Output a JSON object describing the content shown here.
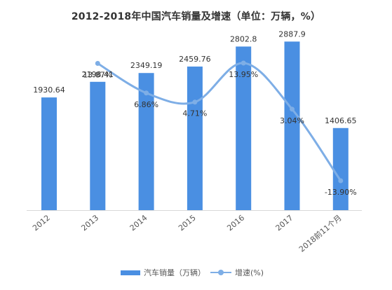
{
  "chart_data": {
    "type": "bar",
    "title": "2012-2018年中国汽车销量及增速（单位：万辆，%）",
    "categories": [
      "2012",
      "2013",
      "2014",
      "2015",
      "2016",
      "2017",
      "2018前11个月"
    ],
    "series": [
      {
        "name": "汽车销量（万辆）",
        "type": "bar",
        "values": [
          1930.64,
          2198.41,
          2349.19,
          2459.76,
          2802.8,
          2887.9,
          1406.65
        ],
        "labels": [
          "1930.64",
          "2198.41",
          "2349.19",
          "2459.76",
          "2802.8",
          "2887.9",
          "1406.65"
        ]
      },
      {
        "name": "增速(%)",
        "type": "line",
        "values": [
          null,
          13.87,
          6.86,
          4.71,
          13.95,
          3.04,
          -13.9
        ],
        "labels": [
          "",
          "13.87%",
          "6.86%",
          "4.71%",
          "13.95%",
          "3.04%",
          "-13.90%"
        ]
      }
    ],
    "ylim": [
      0,
      3000
    ],
    "y2lim": [
      -16,
      20
    ],
    "grid": false,
    "legend": "bottom",
    "colors": {
      "bar": "#4a8fe2",
      "line": "#7eaee6",
      "axis": "#d9d9d9",
      "text": "#333333"
    }
  }
}
